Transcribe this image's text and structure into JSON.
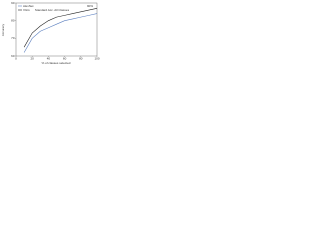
{
  "chart_data": {
    "type": "line",
    "xlabel": "% of classes selected",
    "ylabel": "Accuracy",
    "annotations": [
      "Standard Acc. All Classes",
      "90%"
    ],
    "x": [
      10,
      20,
      30,
      40,
      50,
      60,
      70,
      80,
      90,
      100
    ],
    "series": [
      {
        "name": "AlexNet",
        "color": "#5b7fbf",
        "values": [
          62,
          70,
          74,
          76,
          78,
          80,
          81,
          82,
          83,
          84
        ]
      },
      {
        "name": "VGG",
        "color": "#222222",
        "values": [
          65,
          73,
          77,
          80,
          82,
          83,
          84,
          85,
          86,
          87
        ]
      }
    ],
    "xlim": [
      0,
      100
    ],
    "xticks": [
      0,
      20,
      40,
      60,
      80,
      100
    ],
    "ylim": [
      60,
      90
    ],
    "yticks": [
      60,
      70,
      80,
      90
    ],
    "legend": "upper left"
  }
}
